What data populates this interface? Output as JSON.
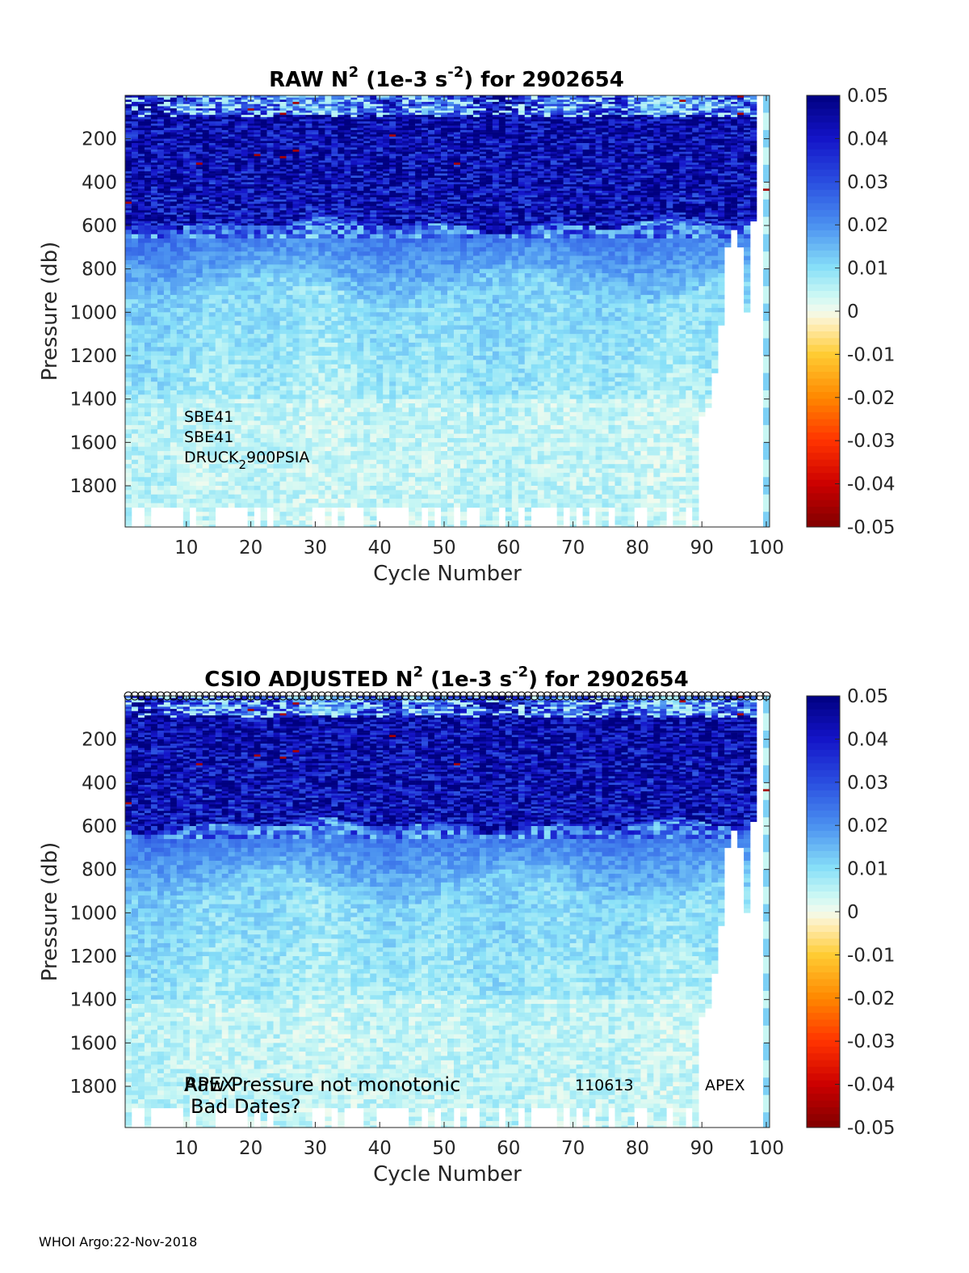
{
  "footer": "WHOI Argo:22-Nov-2018",
  "colormap": {
    "stops": [
      {
        "v": -0.05,
        "c": "#800000"
      },
      {
        "v": -0.04,
        "c": "#cc0000"
      },
      {
        "v": -0.03,
        "c": "#ff3300"
      },
      {
        "v": -0.02,
        "c": "#ff8800"
      },
      {
        "v": -0.01,
        "c": "#ffcc33"
      },
      {
        "v": -0.003,
        "c": "#ffeebb"
      },
      {
        "v": 0.0,
        "c": "#f2fbee"
      },
      {
        "v": 0.004,
        "c": "#c8f7f4"
      },
      {
        "v": 0.01,
        "c": "#88e0f8"
      },
      {
        "v": 0.02,
        "c": "#4a90f0"
      },
      {
        "v": 0.03,
        "c": "#2a4ee0"
      },
      {
        "v": 0.04,
        "c": "#1414c8"
      },
      {
        "v": 0.05,
        "c": "#000080"
      }
    ]
  },
  "chart_data": [
    {
      "type": "heatmap",
      "title": {
        "pre": "RAW N",
        "sup1": "2",
        "mid": " (1e-3 s",
        "sup2": "-2",
        "post": ") for 2902654"
      },
      "xlabel": "Cycle Number",
      "ylabel": "Pressure (db)",
      "xlim": [
        1,
        100
      ],
      "ylim": [
        0,
        1990
      ],
      "y_reversed": true,
      "xticks": [
        10,
        20,
        30,
        40,
        50,
        60,
        70,
        80,
        90,
        100
      ],
      "yticks": [
        200,
        400,
        600,
        800,
        1000,
        1200,
        1400,
        1600,
        1800
      ],
      "colorbar": {
        "clim": [
          -0.05,
          0.05
        ],
        "ticks": [
          "0.05",
          "0.04",
          "0.03",
          "0.02",
          "0.01",
          "0",
          "-0.01",
          "-0.02",
          "-0.03",
          "-0.04",
          "-0.05"
        ]
      },
      "annotations": [
        "SBE41",
        "SBE41",
        "DRUCK",
        "2",
        "900PSIA"
      ],
      "profile_depth_profile": [
        {
          "cycles": [
            1,
            89
          ],
          "max_pressure": 1990
        },
        {
          "cycles": [
            90,
            90
          ],
          "max_pressure": 1480
        },
        {
          "cycles": [
            91,
            91
          ],
          "max_pressure": 1430
        },
        {
          "cycles": [
            92,
            92
          ],
          "max_pressure": 1270
        },
        {
          "cycles": [
            93,
            93
          ],
          "max_pressure": 1050
        },
        {
          "cycles": [
            94,
            94
          ],
          "max_pressure": 700
        },
        {
          "cycles": [
            95,
            95
          ],
          "max_pressure": 620
        },
        {
          "cycles": [
            96,
            96
          ],
          "max_pressure": 700
        },
        {
          "cycles": [
            97,
            97
          ],
          "max_pressure": 1000
        },
        {
          "cycles": [
            98,
            98
          ],
          "max_pressure": 580
        },
        {
          "cycles": [
            99,
            99
          ],
          "max_pressure": 0
        },
        {
          "cycles": [
            100,
            100
          ],
          "max_pressure": 1990
        }
      ],
      "value_layers_by_pressure": [
        {
          "pressure": [
            0,
            100
          ],
          "mean_value": 0.035
        },
        {
          "pressure": [
            100,
            600
          ],
          "mean_value": 0.045
        },
        {
          "pressure": [
            600,
            850
          ],
          "mean_value": 0.02
        },
        {
          "pressure": [
            850,
            1400
          ],
          "mean_value": 0.008
        },
        {
          "pressure": [
            1400,
            1990
          ],
          "mean_value": 0.004
        }
      ]
    },
    {
      "type": "heatmap",
      "title": {
        "pre": "CSIO  ADJUSTED N",
        "sup1": "2",
        "mid": " (1e-3 s",
        "sup2": "-2",
        "post": ") for 2902654"
      },
      "xlabel": "Cycle Number",
      "ylabel": "Pressure (db)",
      "xlim": [
        1,
        100
      ],
      "ylim": [
        0,
        1990
      ],
      "y_reversed": true,
      "xticks": [
        10,
        20,
        30,
        40,
        50,
        60,
        70,
        80,
        90,
        100
      ],
      "yticks": [
        200,
        400,
        600,
        800,
        1000,
        1200,
        1400,
        1600,
        1800
      ],
      "colorbar": {
        "clim": [
          -0.05,
          0.05
        ],
        "ticks": [
          "0.05",
          "0.04",
          "0.03",
          "0.02",
          "0.01",
          "0",
          "-0.01",
          "-0.02",
          "-0.03",
          "-0.04",
          "-0.05"
        ]
      },
      "annotations": [
        "APEX",
        "Raw Pressure not monotonic",
        "Bad Dates?",
        "110613",
        "APEX"
      ],
      "qc_marker_row": true,
      "value_layers_by_pressure": [
        {
          "pressure": [
            0,
            100
          ],
          "mean_value": 0.035
        },
        {
          "pressure": [
            100,
            600
          ],
          "mean_value": 0.045
        },
        {
          "pressure": [
            600,
            850
          ],
          "mean_value": 0.02
        },
        {
          "pressure": [
            850,
            1400
          ],
          "mean_value": 0.008
        },
        {
          "pressure": [
            1400,
            1990
          ],
          "mean_value": 0.004
        }
      ]
    }
  ]
}
